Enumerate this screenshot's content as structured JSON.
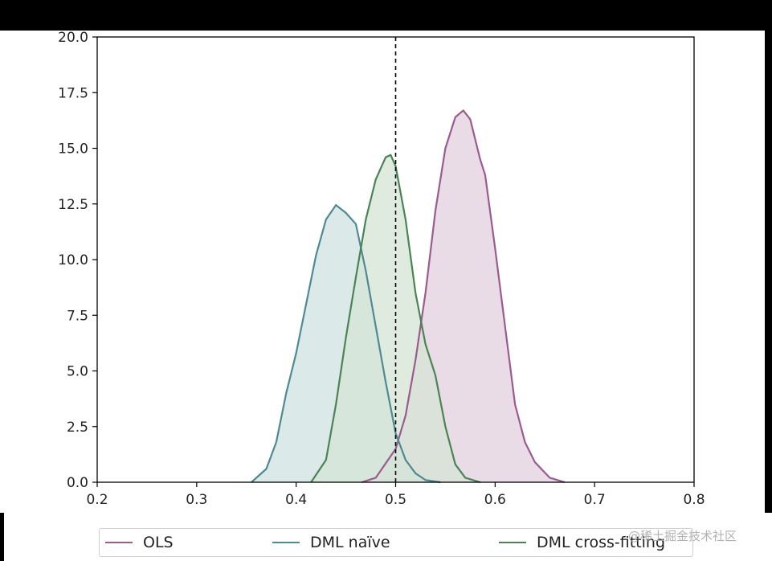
{
  "chart_data": {
    "type": "area",
    "title": "",
    "xlabel": "",
    "ylabel": "",
    "xlim": [
      0.2,
      0.8
    ],
    "ylim": [
      0,
      20
    ],
    "x_ticks": [
      "0.2",
      "0.3",
      "0.4",
      "0.5",
      "0.6",
      "0.7",
      "0.8"
    ],
    "y_ticks": [
      "0.0",
      "2.5",
      "5.0",
      "7.5",
      "10.0",
      "12.5",
      "15.0",
      "17.5",
      "20.0"
    ],
    "reference_line": {
      "x": 0.5,
      "style": "dashed",
      "color": "#000000"
    },
    "legend_position": "bottom, below plot",
    "series": [
      {
        "name": "OLS",
        "color": "#9a5b8f",
        "fill": "#e3d0de",
        "x": [
          0.466,
          0.48,
          0.5,
          0.51,
          0.52,
          0.53,
          0.54,
          0.55,
          0.56,
          0.568,
          0.575,
          0.585,
          0.59,
          0.6,
          0.61,
          0.62,
          0.63,
          0.64,
          0.655,
          0.67
        ],
        "y": [
          0.0,
          0.2,
          1.5,
          3.0,
          5.5,
          8.5,
          12.2,
          15.0,
          16.4,
          16.7,
          16.3,
          14.5,
          13.8,
          10.5,
          7.0,
          3.5,
          1.8,
          0.9,
          0.2,
          0.0
        ]
      },
      {
        "name": "DML naïve",
        "color": "#4e8a93",
        "fill": "#d0e1e2",
        "x": [
          0.355,
          0.37,
          0.38,
          0.39,
          0.4,
          0.41,
          0.42,
          0.43,
          0.44,
          0.45,
          0.46,
          0.47,
          0.48,
          0.49,
          0.5,
          0.51,
          0.52,
          0.53,
          0.545
        ],
        "y": [
          0.0,
          0.6,
          1.8,
          4.0,
          5.8,
          8.0,
          10.2,
          11.8,
          12.45,
          12.1,
          11.6,
          9.5,
          7.0,
          4.5,
          2.2,
          1.0,
          0.4,
          0.1,
          0.0
        ]
      },
      {
        "name": "DML cross-fitting",
        "color": "#4a8454",
        "fill": "#d4e4d4",
        "x": [
          0.415,
          0.43,
          0.44,
          0.45,
          0.46,
          0.47,
          0.48,
          0.49,
          0.495,
          0.5,
          0.51,
          0.52,
          0.53,
          0.54,
          0.55,
          0.56,
          0.57,
          0.585
        ],
        "y": [
          0.0,
          1.0,
          3.5,
          6.5,
          9.2,
          11.8,
          13.6,
          14.6,
          14.7,
          14.2,
          11.8,
          8.5,
          6.2,
          4.8,
          2.5,
          0.8,
          0.2,
          0.0
        ]
      }
    ]
  },
  "legend": {
    "items": [
      {
        "label": "OLS",
        "color": "#9a5b8f"
      },
      {
        "label": "DML naïve",
        "color": "#4e8a93"
      },
      {
        "label": "DML cross-fitting",
        "color": "#4a8454"
      }
    ]
  },
  "watermark": "@稀土掘金技术社区"
}
